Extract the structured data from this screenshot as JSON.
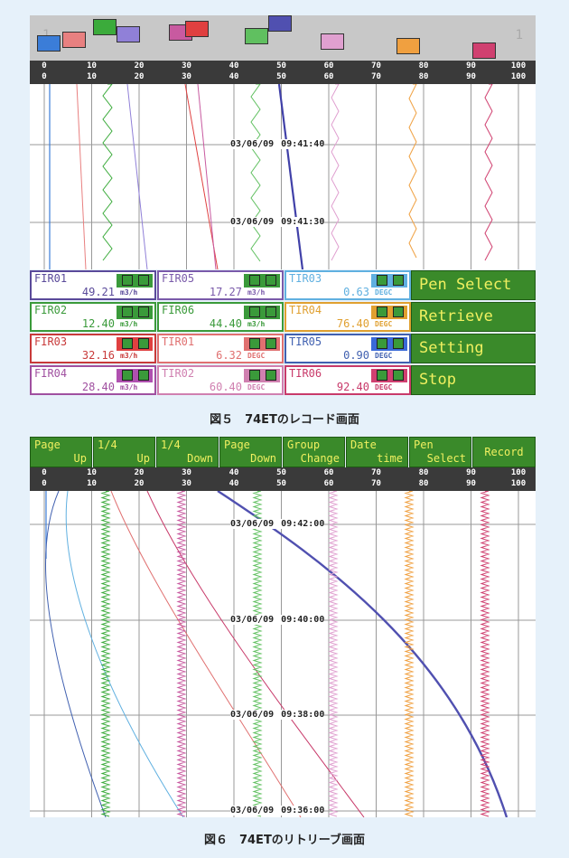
{
  "record": {
    "corner_left": "1",
    "corner_right": "1",
    "scale_top": [
      "0",
      "10",
      "20",
      "30",
      "40",
      "50",
      "60",
      "70",
      "80",
      "90",
      "100"
    ],
    "scale_bottom": [
      "0",
      "10",
      "20",
      "30",
      "40",
      "50",
      "60",
      "70",
      "80",
      "90",
      "100"
    ],
    "timestamps": [
      {
        "date": "03/06/09",
        "time": "09:41:40"
      },
      {
        "date": "03/06/09",
        "time": "09:41:30"
      }
    ],
    "pen_colors": [
      "#3b7dd8",
      "#e88080",
      "#3bab3b",
      "#9080d8",
      "#c85aa0",
      "#e04040",
      "#60c060",
      "#5050b0",
      "#e0a0d0",
      "#f0a040",
      "#d04070"
    ],
    "tags": [
      {
        "name": "FIR01",
        "value": "49.21",
        "unit": "m3/h",
        "color": "#5a4a9a",
        "accent": "#3a9a3a"
      },
      {
        "name": "FIR05",
        "value": "17.27",
        "unit": "m3/h",
        "color": "#7a5aaa",
        "accent": "#3a9a3a"
      },
      {
        "name": "TIR03",
        "value": "0.63",
        "unit": "DEGC",
        "color": "#60b0e0",
        "accent": "#60b0e0"
      },
      {
        "name": "FIR02",
        "value": "12.40",
        "unit": "m3/h",
        "color": "#3a9a3a",
        "accent": "#3a9a3a"
      },
      {
        "name": "FIR06",
        "value": "44.40",
        "unit": "m3/h",
        "color": "#3a9a3a",
        "accent": "#3a9a3a"
      },
      {
        "name": "TIR04",
        "value": "76.40",
        "unit": "DEGC",
        "color": "#e0a030",
        "accent": "#e0a030"
      },
      {
        "name": "FIR03",
        "value": "32.16",
        "unit": "m3/h",
        "color": "#c83a3a",
        "accent": "#e04040"
      },
      {
        "name": "TIR01",
        "value": "6.32",
        "unit": "DEGC",
        "color": "#e07070",
        "accent": "#e07070"
      },
      {
        "name": "TIR05",
        "value": "0.90",
        "unit": "DEGC",
        "color": "#4060b0",
        "accent": "#3a6ad8"
      },
      {
        "name": "FIR04",
        "value": "28.40",
        "unit": "m3/h",
        "color": "#a050a0",
        "accent": "#b050b0"
      },
      {
        "name": "TIR02",
        "value": "60.40",
        "unit": "DEGC",
        "color": "#d080b0",
        "accent": "#d080b0"
      },
      {
        "name": "TIR06",
        "value": "92.40",
        "unit": "DEGC",
        "color": "#c83a6a",
        "accent": "#d04070"
      }
    ],
    "buttons": [
      "Pen Select",
      "Retrieve",
      "Setting",
      "Stop"
    ]
  },
  "caption1": "図５　74ETのレコード画面",
  "retrieve": {
    "top_buttons": [
      {
        "l1": "Page",
        "l2": "Up"
      },
      {
        "l1": "1/4",
        "l2": "Up"
      },
      {
        "l1": "1/4",
        "l2": "Down"
      },
      {
        "l1": "Page",
        "l2": "Down"
      },
      {
        "l1": "Group",
        "l2": "Change"
      },
      {
        "l1": "Date",
        "l2": "time"
      },
      {
        "l1": "Pen",
        "l2": "Select"
      },
      {
        "single": "Record"
      }
    ],
    "scale_top": [
      "0",
      "10",
      "20",
      "30",
      "40",
      "50",
      "60",
      "70",
      "80",
      "90",
      "100"
    ],
    "scale_bottom": [
      "0",
      "10",
      "20",
      "30",
      "40",
      "50",
      "60",
      "70",
      "80",
      "90",
      "100"
    ],
    "timestamps": [
      {
        "date": "03/06/09",
        "time": "09:42:00"
      },
      {
        "date": "03/06/09",
        "time": "09:40:00"
      },
      {
        "date": "03/06/09",
        "time": "09:38:00"
      },
      {
        "date": "03/06/09",
        "time": "09:36:00"
      }
    ]
  },
  "caption2": "図６　74ETのリトリーブ画面"
}
